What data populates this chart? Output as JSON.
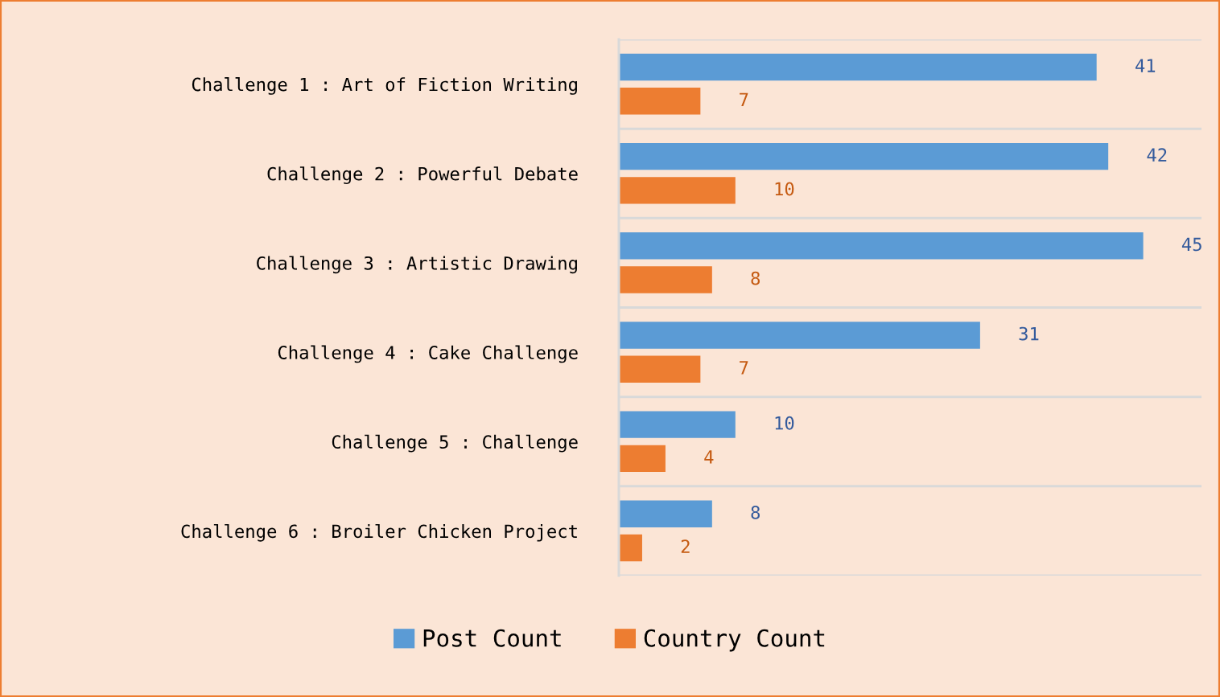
{
  "chart_data": {
    "type": "bar",
    "orientation": "horizontal",
    "categories": [
      "Challenge 1 : Art of Fiction Writing",
      "Challenge 2 : Powerful Debate",
      "Challenge 3 : Artistic Drawing",
      "Challenge 4 : Cake Challenge",
      "Challenge 5 : Challenge",
      "Challenge 6 : Broiler Chicken Project"
    ],
    "series": [
      {
        "name": "Post Count",
        "color": "#5b9bd5",
        "values": [
          41,
          42,
          45,
          31,
          10,
          8
        ]
      },
      {
        "name": "Country Count",
        "color": "#ed7d31",
        "values": [
          7,
          10,
          8,
          7,
          4,
          2
        ]
      }
    ],
    "xlim": [
      0,
      50
    ],
    "data_labels": true,
    "legend": "bottom",
    "grid": "y",
    "tick_labels": "y"
  }
}
